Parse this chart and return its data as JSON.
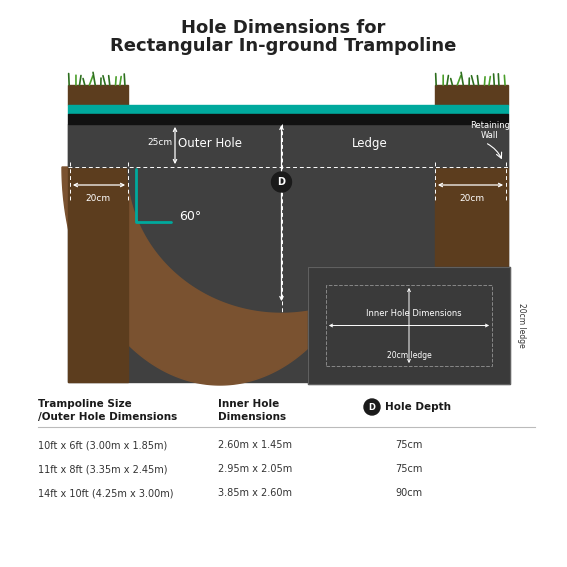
{
  "title_line1": "Hole Dimensions for",
  "title_line2": "Rectangular In-ground Trampoline",
  "bg_color": "#ffffff",
  "diagram_bg": "#404040",
  "soil_dark": "#5c3d1e",
  "soil_mid": "#7a5230",
  "soil_light": "#8b6340",
  "teal_color": "#00a99d",
  "grass_dark": "#2d6e1e",
  "grass_light": "#4a9e2a",
  "table_header_col1": "Trampoline Size\n/Outer Hole Dimensions",
  "table_header_col2": "Inner Hole\nDimensions",
  "table_header_col3": "Hole Depth",
  "table_rows": [
    [
      "10ft x 6ft (3.00m x 1.85m)",
      "2.60m x 1.45m",
      "75cm"
    ],
    [
      "11ft x 8ft (3.35m x 2.45m)",
      "2.95m x 2.05m",
      "75cm"
    ],
    [
      "14ft x 10ft (4.25m x 3.00m)",
      "3.85m x 2.60m",
      "90cm"
    ]
  ],
  "label_25cm": "25cm",
  "label_20cm_left": "20cm",
  "label_20cm_right": "20cm",
  "label_outer_hole": "Outer Hole",
  "label_ledge": "Ledge",
  "label_retaining_wall": "Retaining\nWall",
  "label_D": "D",
  "label_60": "60°",
  "label_inner_hole": "Inner Hole Dimensions",
  "label_20cm_ledge_bottom": "20cm ledge",
  "label_20cm_ledge_right": "20cm ledge"
}
